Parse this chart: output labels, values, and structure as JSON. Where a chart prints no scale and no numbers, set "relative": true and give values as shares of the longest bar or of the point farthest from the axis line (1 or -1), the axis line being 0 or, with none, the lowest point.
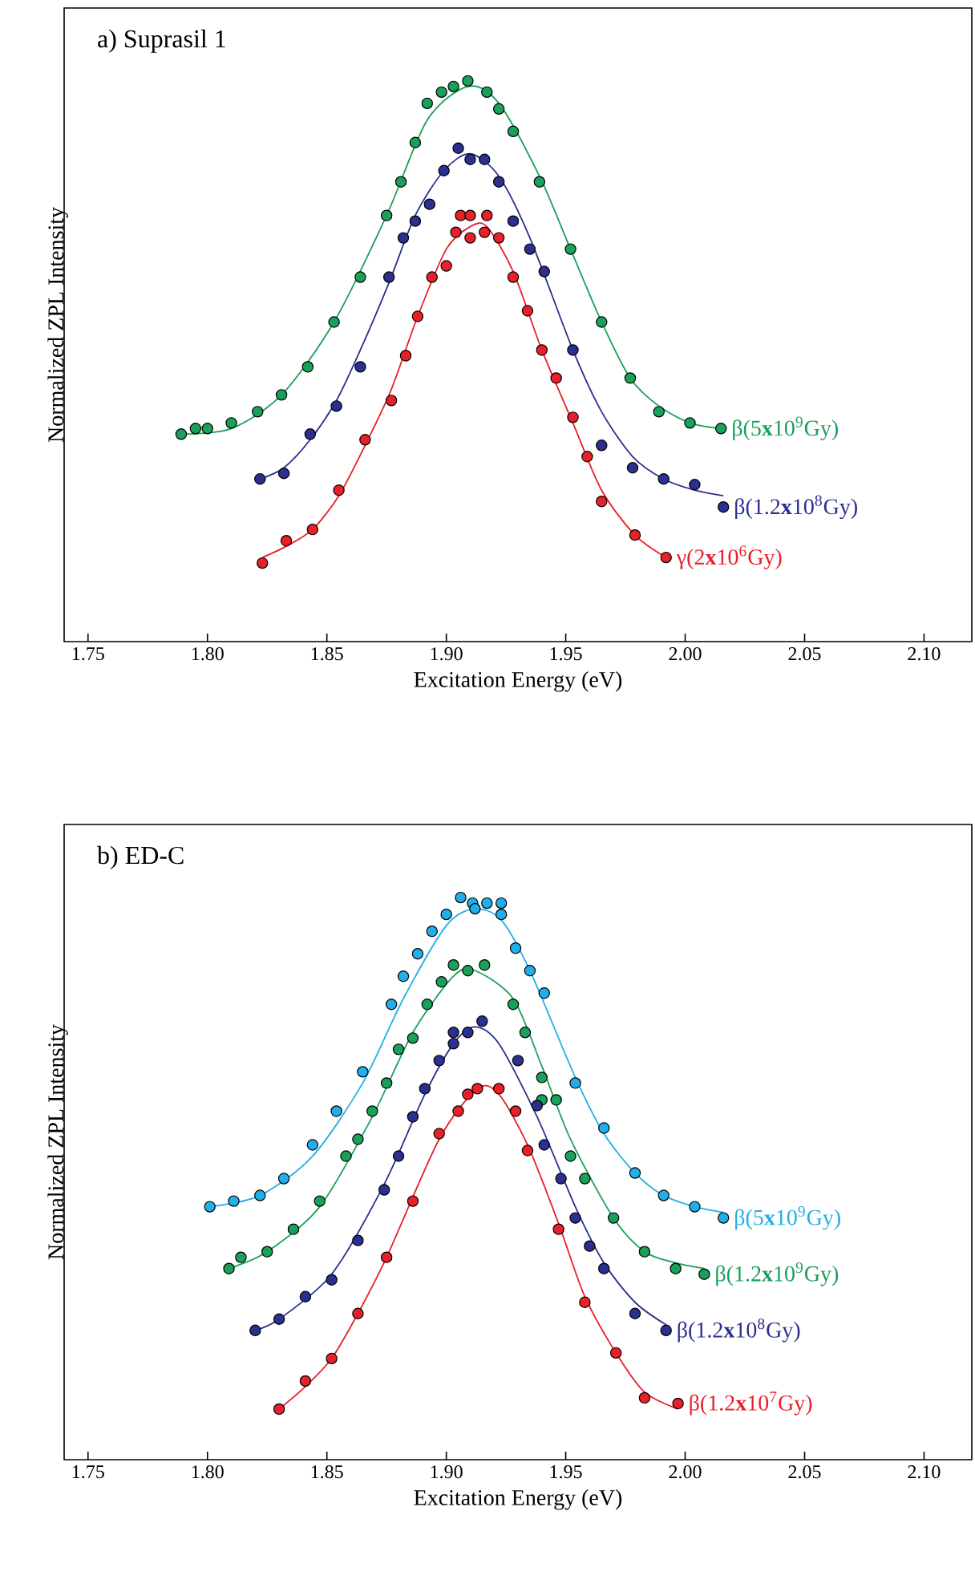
{
  "chart_data": [
    {
      "type": "line",
      "title": "a) Suprasil 1",
      "xlabel": "Excitation Energy (eV)",
      "ylabel": "Normalized ZPL Intensity",
      "relative": true,
      "tick_labels": "x",
      "xlim": [
        1.74,
        2.12
      ],
      "xticks": [
        {
          "value": 1.75,
          "label": "1.75"
        },
        {
          "value": 1.8,
          "label": "1.80"
        },
        {
          "value": 1.85,
          "label": "1.85"
        },
        {
          "value": 1.9,
          "label": "1.90"
        },
        {
          "value": 1.95,
          "label": "1.95"
        },
        {
          "value": 2.0,
          "label": "2.00"
        },
        {
          "value": 2.05,
          "label": "2.05"
        },
        {
          "value": 2.1,
          "label": "2.10"
        }
      ],
      "series": [
        {
          "type": "scatter",
          "name": "β(5**x**10$^{9}$Gy)",
          "color": "#1aa05a",
          "x": [
            1.789,
            1.795,
            1.8,
            1.81,
            1.821,
            1.831,
            1.842,
            1.853,
            1.864,
            1.875,
            1.881,
            1.887,
            1.892,
            1.898,
            1.903,
            1.909,
            1.917,
            1.922,
            1.928,
            1.939,
            1.952,
            1.965,
            1.977,
            1.989,
            2.002,
            2.015
          ],
          "values": [
            0.37,
            0.38,
            0.38,
            0.39,
            0.41,
            0.44,
            0.49,
            0.57,
            0.65,
            0.76,
            0.82,
            0.89,
            0.96,
            0.98,
            0.99,
            1.0,
            0.98,
            0.95,
            0.91,
            0.82,
            0.7,
            0.57,
            0.47,
            0.41,
            0.39,
            0.38
          ]
        },
        {
          "type": "scatter",
          "name": "β(1.2**x**10$^{8}$Gy)",
          "color": "#2b2f8f",
          "x": [
            1.822,
            1.832,
            1.843,
            1.854,
            1.864,
            1.876,
            1.882,
            1.887,
            1.893,
            1.899,
            1.905,
            1.91,
            1.916,
            1.922,
            1.928,
            1.935,
            1.941,
            1.953,
            1.965,
            1.978,
            1.991,
            2.004,
            2.016
          ],
          "values": [
            0.29,
            0.3,
            0.37,
            0.42,
            0.49,
            0.65,
            0.72,
            0.75,
            0.78,
            0.84,
            0.88,
            0.86,
            0.86,
            0.82,
            0.75,
            0.7,
            0.66,
            0.52,
            0.35,
            0.31,
            0.29,
            0.28,
            0.24
          ]
        },
        {
          "type": "scatter",
          "name": "γ(2**x**10$^{6}$Gy)",
          "color": "#e8202a",
          "x": [
            1.823,
            1.833,
            1.844,
            1.855,
            1.866,
            1.877,
            1.883,
            1.888,
            1.894,
            1.9,
            1.904,
            1.906,
            1.91,
            1.91,
            1.916,
            1.917,
            1.922,
            1.928,
            1.934,
            1.94,
            1.946,
            1.953,
            1.959,
            1.965,
            1.979,
            1.992
          ],
          "values": [
            0.14,
            0.18,
            0.2,
            0.27,
            0.36,
            0.43,
            0.51,
            0.58,
            0.65,
            0.67,
            0.73,
            0.76,
            0.72,
            0.76,
            0.73,
            0.76,
            0.72,
            0.65,
            0.59,
            0.52,
            0.47,
            0.4,
            0.33,
            0.25,
            0.19,
            0.15
          ]
        },
        {
          "marker": "none",
          "color": "#1aa05a",
          "x": [
            1.789,
            1.81,
            1.831,
            1.853,
            1.875,
            1.892,
            1.909,
            1.922,
            1.939,
            1.952,
            1.965,
            1.977,
            1.989,
            2.002,
            2.015
          ],
          "values": [
            0.37,
            0.38,
            0.44,
            0.57,
            0.76,
            0.93,
            0.99,
            0.96,
            0.83,
            0.7,
            0.57,
            0.47,
            0.42,
            0.39,
            0.38
          ]
        },
        {
          "marker": "none",
          "color": "#2b2f8f",
          "x": [
            1.822,
            1.832,
            1.843,
            1.854,
            1.864,
            1.876,
            1.887,
            1.899,
            1.91,
            1.922,
            1.935,
            1.953,
            1.965,
            1.978,
            1.991,
            2.004,
            2.016
          ],
          "values": [
            0.29,
            0.31,
            0.36,
            0.43,
            0.52,
            0.64,
            0.76,
            0.84,
            0.87,
            0.83,
            0.72,
            0.52,
            0.41,
            0.33,
            0.29,
            0.27,
            0.26
          ]
        },
        {
          "marker": "none",
          "color": "#e8202a",
          "x": [
            1.823,
            1.833,
            1.844,
            1.855,
            1.866,
            1.877,
            1.888,
            1.9,
            1.91,
            1.917,
            1.928,
            1.94,
            1.953,
            1.965,
            1.979,
            1.992
          ],
          "values": [
            0.15,
            0.17,
            0.2,
            0.26,
            0.35,
            0.45,
            0.58,
            0.7,
            0.74,
            0.74,
            0.66,
            0.52,
            0.39,
            0.27,
            0.19,
            0.15
          ]
        }
      ]
    },
    {
      "type": "line",
      "title": "b) ED-C",
      "xlabel": "Excitation Energy (eV)",
      "ylabel": "Normalized ZPL Intensity",
      "relative": true,
      "tick_labels": "x",
      "xlim": [
        1.74,
        2.12
      ],
      "xticks": [
        {
          "value": 1.75,
          "label": "1.75"
        },
        {
          "value": 1.8,
          "label": "1.80"
        },
        {
          "value": 1.85,
          "label": "1.85"
        },
        {
          "value": 1.9,
          "label": "1.90"
        },
        {
          "value": 1.95,
          "label": "1.95"
        },
        {
          "value": 2.0,
          "label": "2.00"
        },
        {
          "value": 2.05,
          "label": "2.05"
        },
        {
          "value": 2.1,
          "label": "2.10"
        }
      ],
      "series": [
        {
          "type": "scatter",
          "name": "β(5**x**10$^{9}$Gy)",
          "color": "#22aee8",
          "x": [
            1.801,
            1.811,
            1.822,
            1.832,
            1.844,
            1.854,
            1.865,
            1.877,
            1.882,
            1.888,
            1.894,
            1.9,
            1.906,
            1.911,
            1.912,
            1.917,
            1.923,
            1.923,
            1.929,
            1.935,
            1.941,
            1.954,
            1.966,
            1.979,
            1.991,
            2.004,
            2.016
          ],
          "values": [
            0.45,
            0.46,
            0.47,
            0.5,
            0.56,
            0.62,
            0.69,
            0.81,
            0.86,
            0.9,
            0.94,
            0.97,
            1.0,
            0.99,
            0.98,
            0.99,
            0.99,
            0.97,
            0.91,
            0.87,
            0.83,
            0.67,
            0.59,
            0.51,
            0.47,
            0.45,
            0.43
          ]
        },
        {
          "type": "scatter",
          "name": "β(1.2**x**10$^{9}$Gy)",
          "color": "#1aa05a",
          "x": [
            1.809,
            1.814,
            1.825,
            1.836,
            1.847,
            1.858,
            1.863,
            1.869,
            1.875,
            1.88,
            1.886,
            1.892,
            1.898,
            1.903,
            1.909,
            1.916,
            1.928,
            1.933,
            1.94,
            1.94,
            1.946,
            1.952,
            1.958,
            1.97,
            1.983,
            1.996,
            2.008
          ],
          "values": [
            0.34,
            0.36,
            0.37,
            0.41,
            0.46,
            0.54,
            0.57,
            0.62,
            0.67,
            0.73,
            0.75,
            0.81,
            0.85,
            0.88,
            0.87,
            0.88,
            0.81,
            0.76,
            0.68,
            0.64,
            0.64,
            0.54,
            0.5,
            0.43,
            0.37,
            0.34,
            0.33
          ]
        },
        {
          "type": "scatter",
          "name": "β(1.2**x**10$^{8}$Gy)",
          "color": "#2b2f8f",
          "x": [
            1.82,
            1.83,
            1.841,
            1.852,
            1.863,
            1.874,
            1.88,
            1.886,
            1.891,
            1.897,
            1.903,
            1.903,
            1.909,
            1.915,
            1.93,
            1.938,
            1.941,
            1.948,
            1.954,
            1.96,
            1.966,
            1.979,
            1.992
          ],
          "values": [
            0.23,
            0.25,
            0.29,
            0.32,
            0.39,
            0.48,
            0.54,
            0.61,
            0.66,
            0.71,
            0.74,
            0.76,
            0.76,
            0.78,
            0.71,
            0.63,
            0.56,
            0.5,
            0.43,
            0.38,
            0.34,
            0.26,
            0.23
          ]
        },
        {
          "type": "scatter",
          "name": "β(1.2**x**10$^{7}$Gy)",
          "color": "#e8202a",
          "x": [
            1.83,
            1.841,
            1.852,
            1.863,
            1.875,
            1.886,
            1.897,
            1.905,
            1.909,
            1.913,
            1.922,
            1.929,
            1.934,
            1.947,
            1.958,
            1.971,
            1.983,
            1.997
          ],
          "values": [
            0.09,
            0.14,
            0.18,
            0.26,
            0.36,
            0.46,
            0.58,
            0.62,
            0.65,
            0.66,
            0.66,
            0.62,
            0.55,
            0.41,
            0.28,
            0.19,
            0.11,
            0.1
          ]
        },
        {
          "marker": "none",
          "color": "#22aee8",
          "x": [
            1.801,
            1.822,
            1.844,
            1.865,
            1.882,
            1.9,
            1.912,
            1.923,
            1.935,
            1.954,
            1.966,
            1.979,
            1.991,
            2.004,
            2.016
          ],
          "values": [
            0.45,
            0.47,
            0.54,
            0.67,
            0.82,
            0.95,
            0.98,
            0.96,
            0.87,
            0.68,
            0.58,
            0.51,
            0.47,
            0.45,
            0.44
          ]
        },
        {
          "marker": "none",
          "color": "#1aa05a",
          "x": [
            1.809,
            1.825,
            1.847,
            1.869,
            1.886,
            1.903,
            1.912,
            1.928,
            1.94,
            1.952,
            1.97,
            1.983,
            1.996,
            2.008
          ],
          "values": [
            0.34,
            0.37,
            0.45,
            0.61,
            0.76,
            0.86,
            0.87,
            0.82,
            0.7,
            0.57,
            0.43,
            0.37,
            0.35,
            0.34
          ]
        },
        {
          "marker": "none",
          "color": "#2b2f8f",
          "x": [
            1.82,
            1.83,
            1.852,
            1.874,
            1.891,
            1.903,
            1.912,
            1.922,
            1.938,
            1.954,
            1.966,
            1.979,
            1.992
          ],
          "values": [
            0.23,
            0.25,
            0.33,
            0.49,
            0.65,
            0.74,
            0.77,
            0.74,
            0.61,
            0.45,
            0.35,
            0.28,
            0.24
          ]
        },
        {
          "marker": "none",
          "color": "#e8202a",
          "x": [
            1.83,
            1.841,
            1.852,
            1.863,
            1.875,
            1.897,
            1.913,
            1.922,
            1.934,
            1.947,
            1.958,
            1.971,
            1.983,
            1.997
          ],
          "values": [
            0.09,
            0.13,
            0.18,
            0.26,
            0.36,
            0.57,
            0.66,
            0.65,
            0.56,
            0.42,
            0.29,
            0.19,
            0.12,
            0.09
          ]
        }
      ]
    }
  ]
}
